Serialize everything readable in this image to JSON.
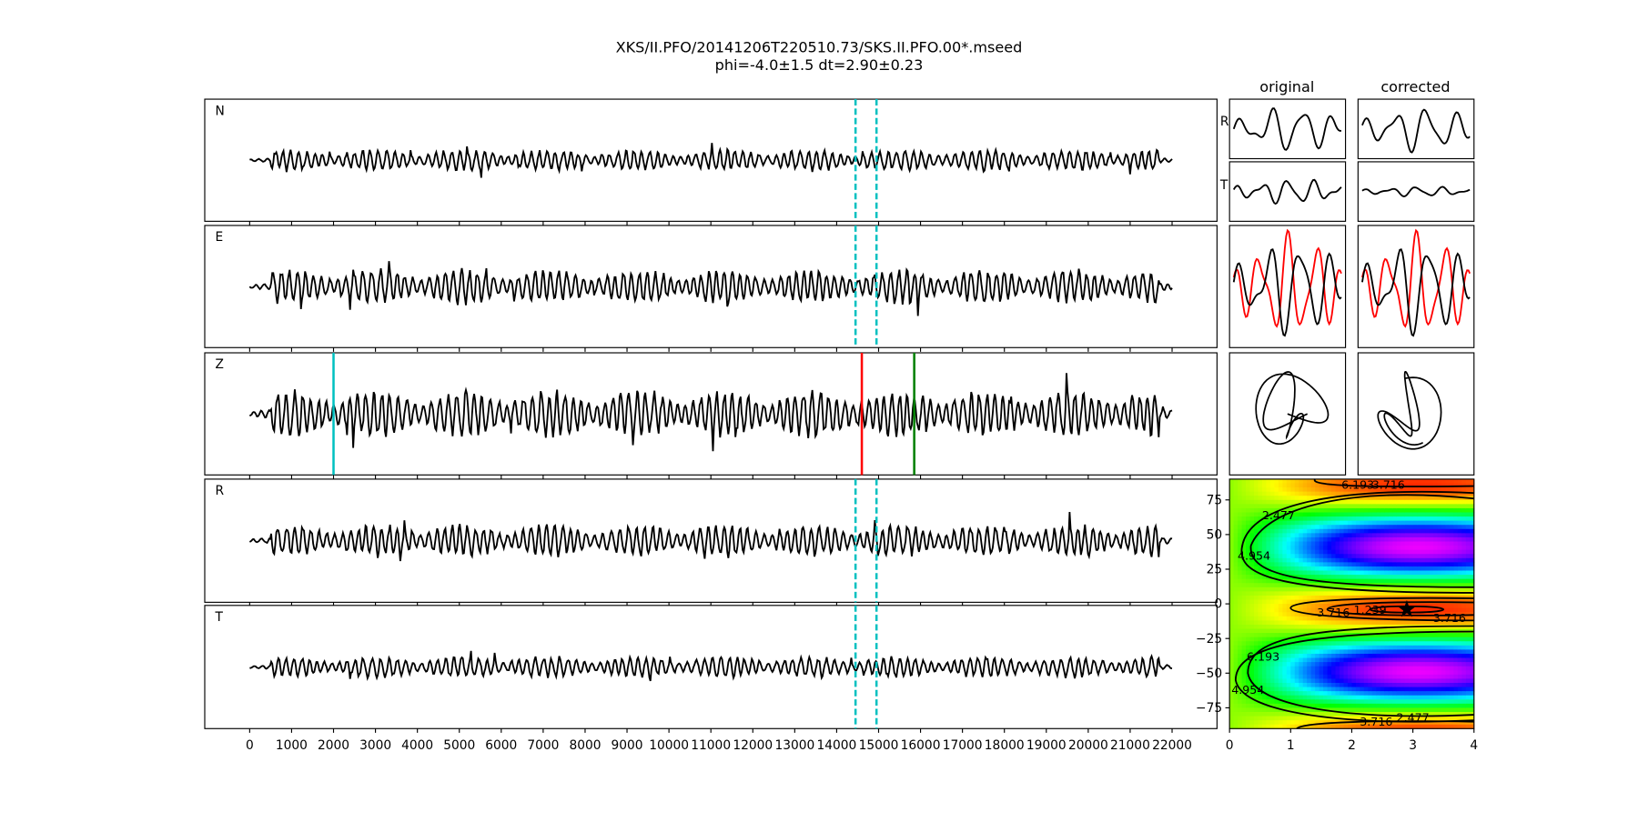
{
  "title_line1": "XKS/II.PFO/20141206T220510.73/SKS.II.PFO.00*.mseed",
  "title_line2": "phi=-4.0±1.5 dt=2.90±0.23",
  "chart_data": [
    {
      "type": "line",
      "panels": [
        "N",
        "E",
        "Z",
        "R",
        "T"
      ],
      "xlim": [
        -1000,
        23000
      ],
      "xticks": [
        "0",
        "1000",
        "2000",
        "3000",
        "4000",
        "5000",
        "6000",
        "7000",
        "8000",
        "9000",
        "10000",
        "11000",
        "12000",
        "13000",
        "14000",
        "15000",
        "16000",
        "17000",
        "18000",
        "19000",
        "20000",
        "21000",
        "22000"
      ],
      "window_lines": {
        "color": "#00c0c0",
        "style": "dashed",
        "x": [
          14450,
          14950
        ],
        "panels": [
          "N",
          "E",
          "R",
          "T"
        ]
      },
      "z_markers": [
        {
          "x": 2000,
          "color": "#00c0c0"
        },
        {
          "x": 14600,
          "color": "#ff0000"
        },
        {
          "x": 15850,
          "color": "#008000"
        }
      ]
    },
    {
      "type": "line",
      "columns": [
        "original",
        "corrected"
      ],
      "row_labels": [
        "R",
        "T"
      ],
      "series_colors": {
        "radial": "#ff0000",
        "transverse": "#000000"
      }
    },
    {
      "type": "heatmap",
      "xlim": [
        0,
        4
      ],
      "ylim": [
        -90,
        90
      ],
      "xticks": [
        "0",
        "1",
        "2",
        "3",
        "4"
      ],
      "yticks": [
        "75",
        "50",
        "25",
        "0",
        "−25",
        "−50",
        "−75"
      ],
      "contour_levels": [
        "1.239",
        "2.477",
        "3.716",
        "4.954",
        "6.193"
      ],
      "colormap": "rainbow (red low → magenta high)",
      "best": {
        "dt": 2.9,
        "phi": -4.0,
        "marker": "star"
      }
    }
  ]
}
